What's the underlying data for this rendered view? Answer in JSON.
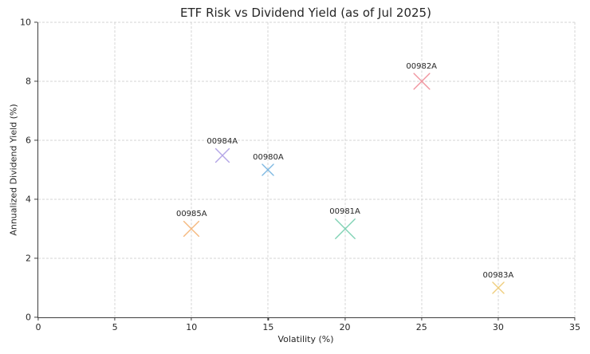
{
  "chart_data": {
    "type": "scatter",
    "title": "ETF Risk vs Dividend Yield (as of Jul 2025)",
    "xlabel": "Volatility (%)",
    "ylabel": "Annualized Dividend Yield (%)",
    "xlim": [
      0,
      35
    ],
    "ylim": [
      0,
      10
    ],
    "xticks": [
      0,
      5,
      10,
      15,
      20,
      25,
      30,
      35
    ],
    "yticks": [
      0,
      2,
      4,
      6,
      8,
      10
    ],
    "grid": true,
    "grid_style": "dashed",
    "legend_position": "none",
    "marker_shape": "x",
    "points": [
      {
        "label": "00980A",
        "x": 15,
        "y": 5.0,
        "color": "#7FB9E2",
        "size": 15
      },
      {
        "label": "00981A",
        "x": 20,
        "y": 3.0,
        "color": "#80D2B4",
        "size": 26
      },
      {
        "label": "00982A",
        "x": 25,
        "y": 8.0,
        "color": "#F1949E",
        "size": 21
      },
      {
        "label": "00983A",
        "x": 30,
        "y": 1.0,
        "color": "#EFCE7E",
        "size": 15
      },
      {
        "label": "00984A",
        "x": 12,
        "y": 5.5,
        "color": "#B3A5E6",
        "size": 18
      },
      {
        "label": "00985A",
        "x": 10,
        "y": 3.0,
        "color": "#F5B87E",
        "size": 20
      }
    ]
  },
  "colors": {
    "background": "#ffffff",
    "text": "#262626",
    "spine": "#3d3d3d",
    "grid": "#d4d4d4"
  }
}
